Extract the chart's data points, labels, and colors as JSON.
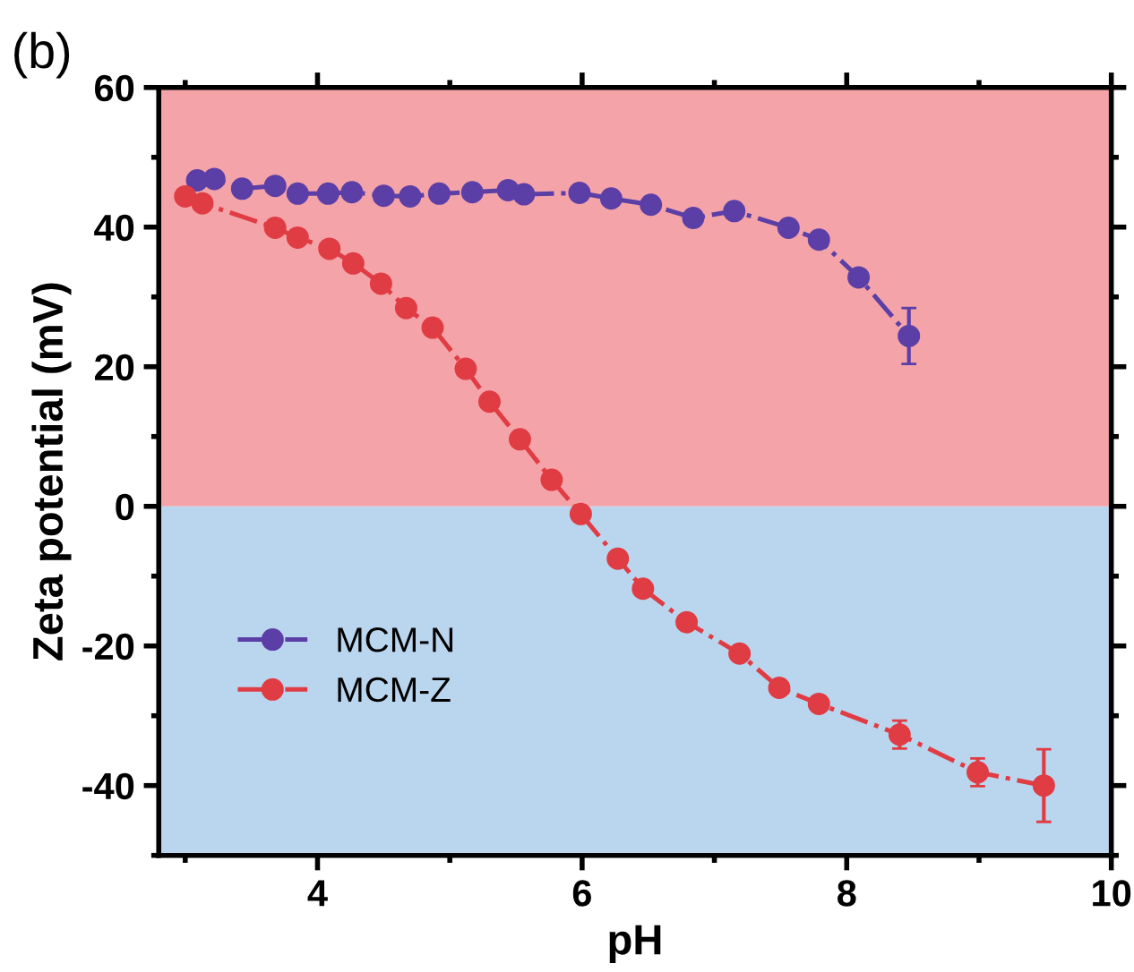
{
  "chart_data": {
    "type": "line",
    "xlabel": "pH",
    "ylabel": "Zeta potential (mV)",
    "annotations": [
      "(b)"
    ],
    "xlim": [
      2.8,
      10
    ],
    "xticks": [
      4,
      6,
      8,
      10
    ],
    "ylim": [
      -50,
      60
    ],
    "yticks": [
      -40,
      -20,
      0,
      20,
      40,
      60
    ],
    "grid": false,
    "legend": "bottom left",
    "marker": "circle",
    "line_style": "dashdot",
    "bands": [
      {
        "axis": "y",
        "from": 0,
        "to": 60,
        "color": "#f4a3a8"
      },
      {
        "axis": "y",
        "from": -50,
        "to": 0,
        "color": "#bad6ef"
      }
    ],
    "series": [
      {
        "name": "MCM-N",
        "color": "#5b3fa6",
        "x": [
          3.09,
          3.22,
          3.43,
          3.68,
          3.85,
          4.08,
          4.26,
          4.5,
          4.7,
          4.92,
          5.17,
          5.44,
          5.56,
          5.98,
          6.22,
          6.52,
          6.84,
          7.15,
          7.56,
          7.79,
          8.09,
          8.47
        ],
        "values": [
          46.7,
          46.9,
          45.5,
          45.9,
          44.8,
          44.8,
          45.0,
          44.5,
          44.4,
          44.8,
          45.0,
          45.3,
          44.7,
          44.9,
          44.1,
          43.2,
          41.3,
          42.3,
          39.9,
          38.2,
          32.8,
          24.4
        ],
        "errors": [
          null,
          null,
          null,
          null,
          null,
          null,
          null,
          null,
          null,
          null,
          null,
          null,
          null,
          null,
          null,
          null,
          null,
          null,
          null,
          null,
          null,
          4
        ]
      },
      {
        "name": "MCM-Z",
        "color": "#e03c44",
        "x": [
          3.0,
          3.13,
          3.68,
          3.85,
          4.09,
          4.27,
          4.48,
          4.67,
          4.87,
          5.12,
          5.3,
          5.53,
          5.77,
          5.99,
          6.27,
          6.46,
          6.79,
          7.19,
          7.49,
          7.79,
          8.4,
          8.99,
          9.49
        ],
        "values": [
          44.4,
          43.4,
          39.9,
          38.5,
          36.9,
          34.8,
          31.9,
          28.4,
          25.6,
          19.7,
          15.0,
          9.6,
          3.8,
          -1.1,
          -7.5,
          -11.8,
          -16.6,
          -21.1,
          -26.0,
          -28.3,
          -32.7,
          -38.1,
          -40.0
        ],
        "errors": [
          null,
          null,
          null,
          null,
          null,
          null,
          null,
          null,
          null,
          null,
          null,
          null,
          null,
          null,
          null,
          null,
          null,
          null,
          null,
          null,
          2,
          2,
          5.2
        ]
      }
    ]
  }
}
